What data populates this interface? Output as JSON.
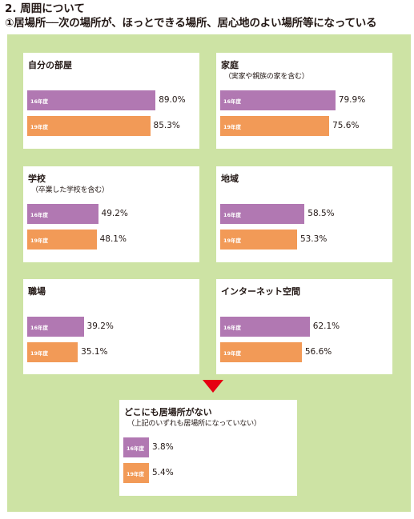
{
  "heading": "2. 周囲について",
  "subheading": "①居場所──次の場所が、ほっとできる場所、居心地のよい場所等になっている",
  "colors": {
    "panel": "#cde3a4",
    "y16": "#b178b2",
    "y19": "#f29a57",
    "arrow": "#e60012"
  },
  "chart_data": [
    {
      "type": "bar",
      "title": "自分の部屋",
      "subtitle": "",
      "categories": [
        "16年度",
        "19年度"
      ],
      "values": [
        89.0,
        85.3
      ],
      "unit": "%",
      "xlim": [
        0,
        100
      ]
    },
    {
      "type": "bar",
      "title": "家庭",
      "subtitle": "（実家や親族の家を含む）",
      "categories": [
        "16年度",
        "19年度"
      ],
      "values": [
        79.9,
        75.6
      ],
      "unit": "%",
      "xlim": [
        0,
        100
      ]
    },
    {
      "type": "bar",
      "title": "学校",
      "subtitle": "（卒業した学校を含む）",
      "categories": [
        "16年度",
        "19年度"
      ],
      "values": [
        49.2,
        48.1
      ],
      "unit": "%",
      "xlim": [
        0,
        100
      ]
    },
    {
      "type": "bar",
      "title": "地域",
      "subtitle": "",
      "categories": [
        "16年度",
        "19年度"
      ],
      "values": [
        58.5,
        53.3
      ],
      "unit": "%",
      "xlim": [
        0,
        100
      ]
    },
    {
      "type": "bar",
      "title": "職場",
      "subtitle": "",
      "categories": [
        "16年度",
        "19年度"
      ],
      "values": [
        39.2,
        35.1
      ],
      "unit": "%",
      "xlim": [
        0,
        100
      ]
    },
    {
      "type": "bar",
      "title": "インターネット空間",
      "subtitle": "",
      "categories": [
        "16年度",
        "19年度"
      ],
      "values": [
        62.1,
        56.6
      ],
      "unit": "%",
      "xlim": [
        0,
        100
      ]
    },
    {
      "type": "bar",
      "title": "どこにも居場所がない",
      "subtitle": "（上記のいずれも居場所になっていない）",
      "categories": [
        "16年度",
        "19年度"
      ],
      "values": [
        3.8,
        5.4
      ],
      "unit": "%",
      "xlim": [
        0,
        100
      ]
    }
  ]
}
